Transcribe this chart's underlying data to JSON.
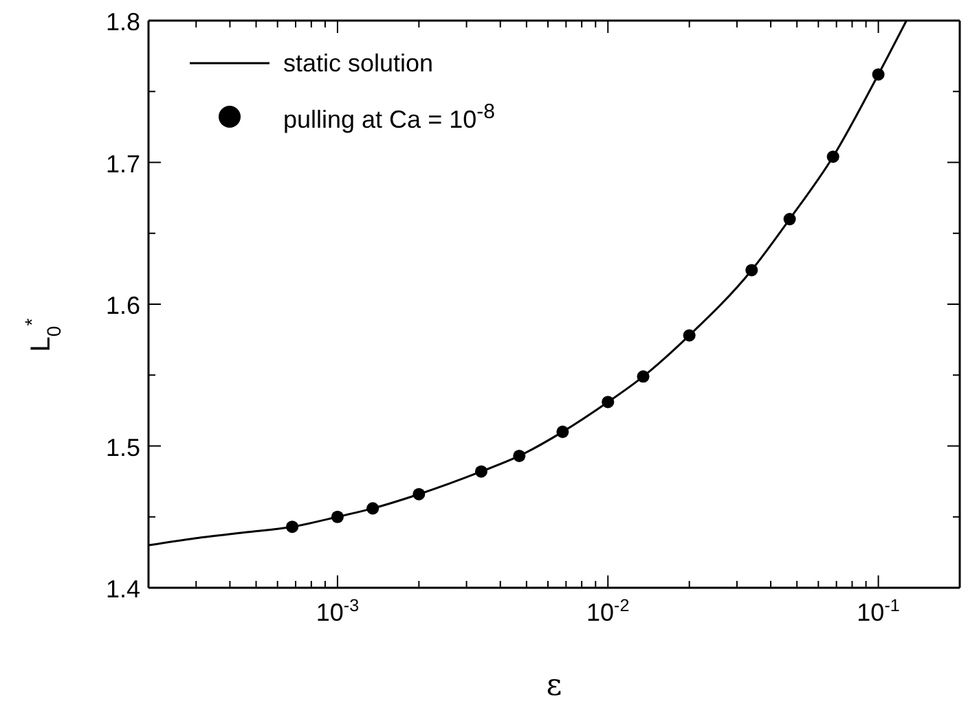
{
  "chart_data": {
    "type": "scatter",
    "xlabel": "ε",
    "ylabel": "L$_{0}$$^{*}$",
    "log": "x",
    "xlim": [
      0.0002,
      0.2
    ],
    "xticks": [
      {
        "value": 0.0003,
        "label": null
      },
      {
        "value": 0.0004,
        "label": null
      },
      {
        "value": 0.0005,
        "label": null
      },
      {
        "value": 0.0006,
        "label": null
      },
      {
        "value": 0.0007,
        "label": null
      },
      {
        "value": 0.0008,
        "label": null
      },
      {
        "value": 0.0009,
        "label": null
      },
      {
        "value": 0.001,
        "label": "10$^{-3}$"
      },
      {
        "value": 0.002,
        "label": null
      },
      {
        "value": 0.003,
        "label": null
      },
      {
        "value": 0.004,
        "label": null
      },
      {
        "value": 0.005,
        "label": null
      },
      {
        "value": 0.006,
        "label": null
      },
      {
        "value": 0.007,
        "label": null
      },
      {
        "value": 0.008,
        "label": null
      },
      {
        "value": 0.009,
        "label": null
      },
      {
        "value": 0.01,
        "label": "10$^{-2}$"
      },
      {
        "value": 0.02,
        "label": null
      },
      {
        "value": 0.03,
        "label": null
      },
      {
        "value": 0.04,
        "label": null
      },
      {
        "value": 0.05,
        "label": null
      },
      {
        "value": 0.06,
        "label": null
      },
      {
        "value": 0.07,
        "label": null
      },
      {
        "value": 0.08,
        "label": null
      },
      {
        "value": 0.09,
        "label": null
      },
      {
        "value": 0.1,
        "label": "10$^{-1}$"
      },
      {
        "value": 0.2,
        "label": null
      }
    ],
    "ylim": [
      1.4,
      1.8
    ],
    "yticks": [
      1.4,
      {
        "value": 1.45,
        "label": null
      },
      1.5,
      {
        "value": 1.55,
        "label": null
      },
      1.6,
      {
        "value": 1.65,
        "label": null
      },
      1.7,
      {
        "value": 1.75,
        "label": null
      },
      1.8
    ],
    "legend": "top left",
    "series": [
      {
        "name": "static solution",
        "type": "line",
        "marker": "none",
        "line_style": "solid",
        "color": "#000000",
        "x": [
          0.0002,
          0.0003,
          0.00045,
          0.00068,
          0.001,
          0.00135,
          0.002,
          0.0034,
          0.0047,
          0.0068,
          0.01,
          0.0135,
          0.02,
          0.034,
          0.047,
          0.068,
          0.1,
          0.127
        ],
        "values": [
          1.43,
          1.435,
          1.439,
          1.443,
          1.45,
          1.456,
          1.466,
          1.482,
          1.493,
          1.51,
          1.531,
          1.549,
          1.578,
          1.624,
          1.66,
          1.704,
          1.762,
          1.8
        ]
      },
      {
        "name": "pulling at Ca = 10$^{-8}$",
        "marker": "circle",
        "color": "#000000",
        "x": [
          0.00068,
          0.001,
          0.00135,
          0.002,
          0.0034,
          0.0047,
          0.0068,
          0.01,
          0.0135,
          0.02,
          0.034,
          0.047,
          0.068,
          0.1
        ],
        "values": [
          1.443,
          1.45,
          1.456,
          1.466,
          1.482,
          1.493,
          1.51,
          1.531,
          1.549,
          1.578,
          1.624,
          1.66,
          1.704,
          1.762
        ]
      }
    ]
  }
}
